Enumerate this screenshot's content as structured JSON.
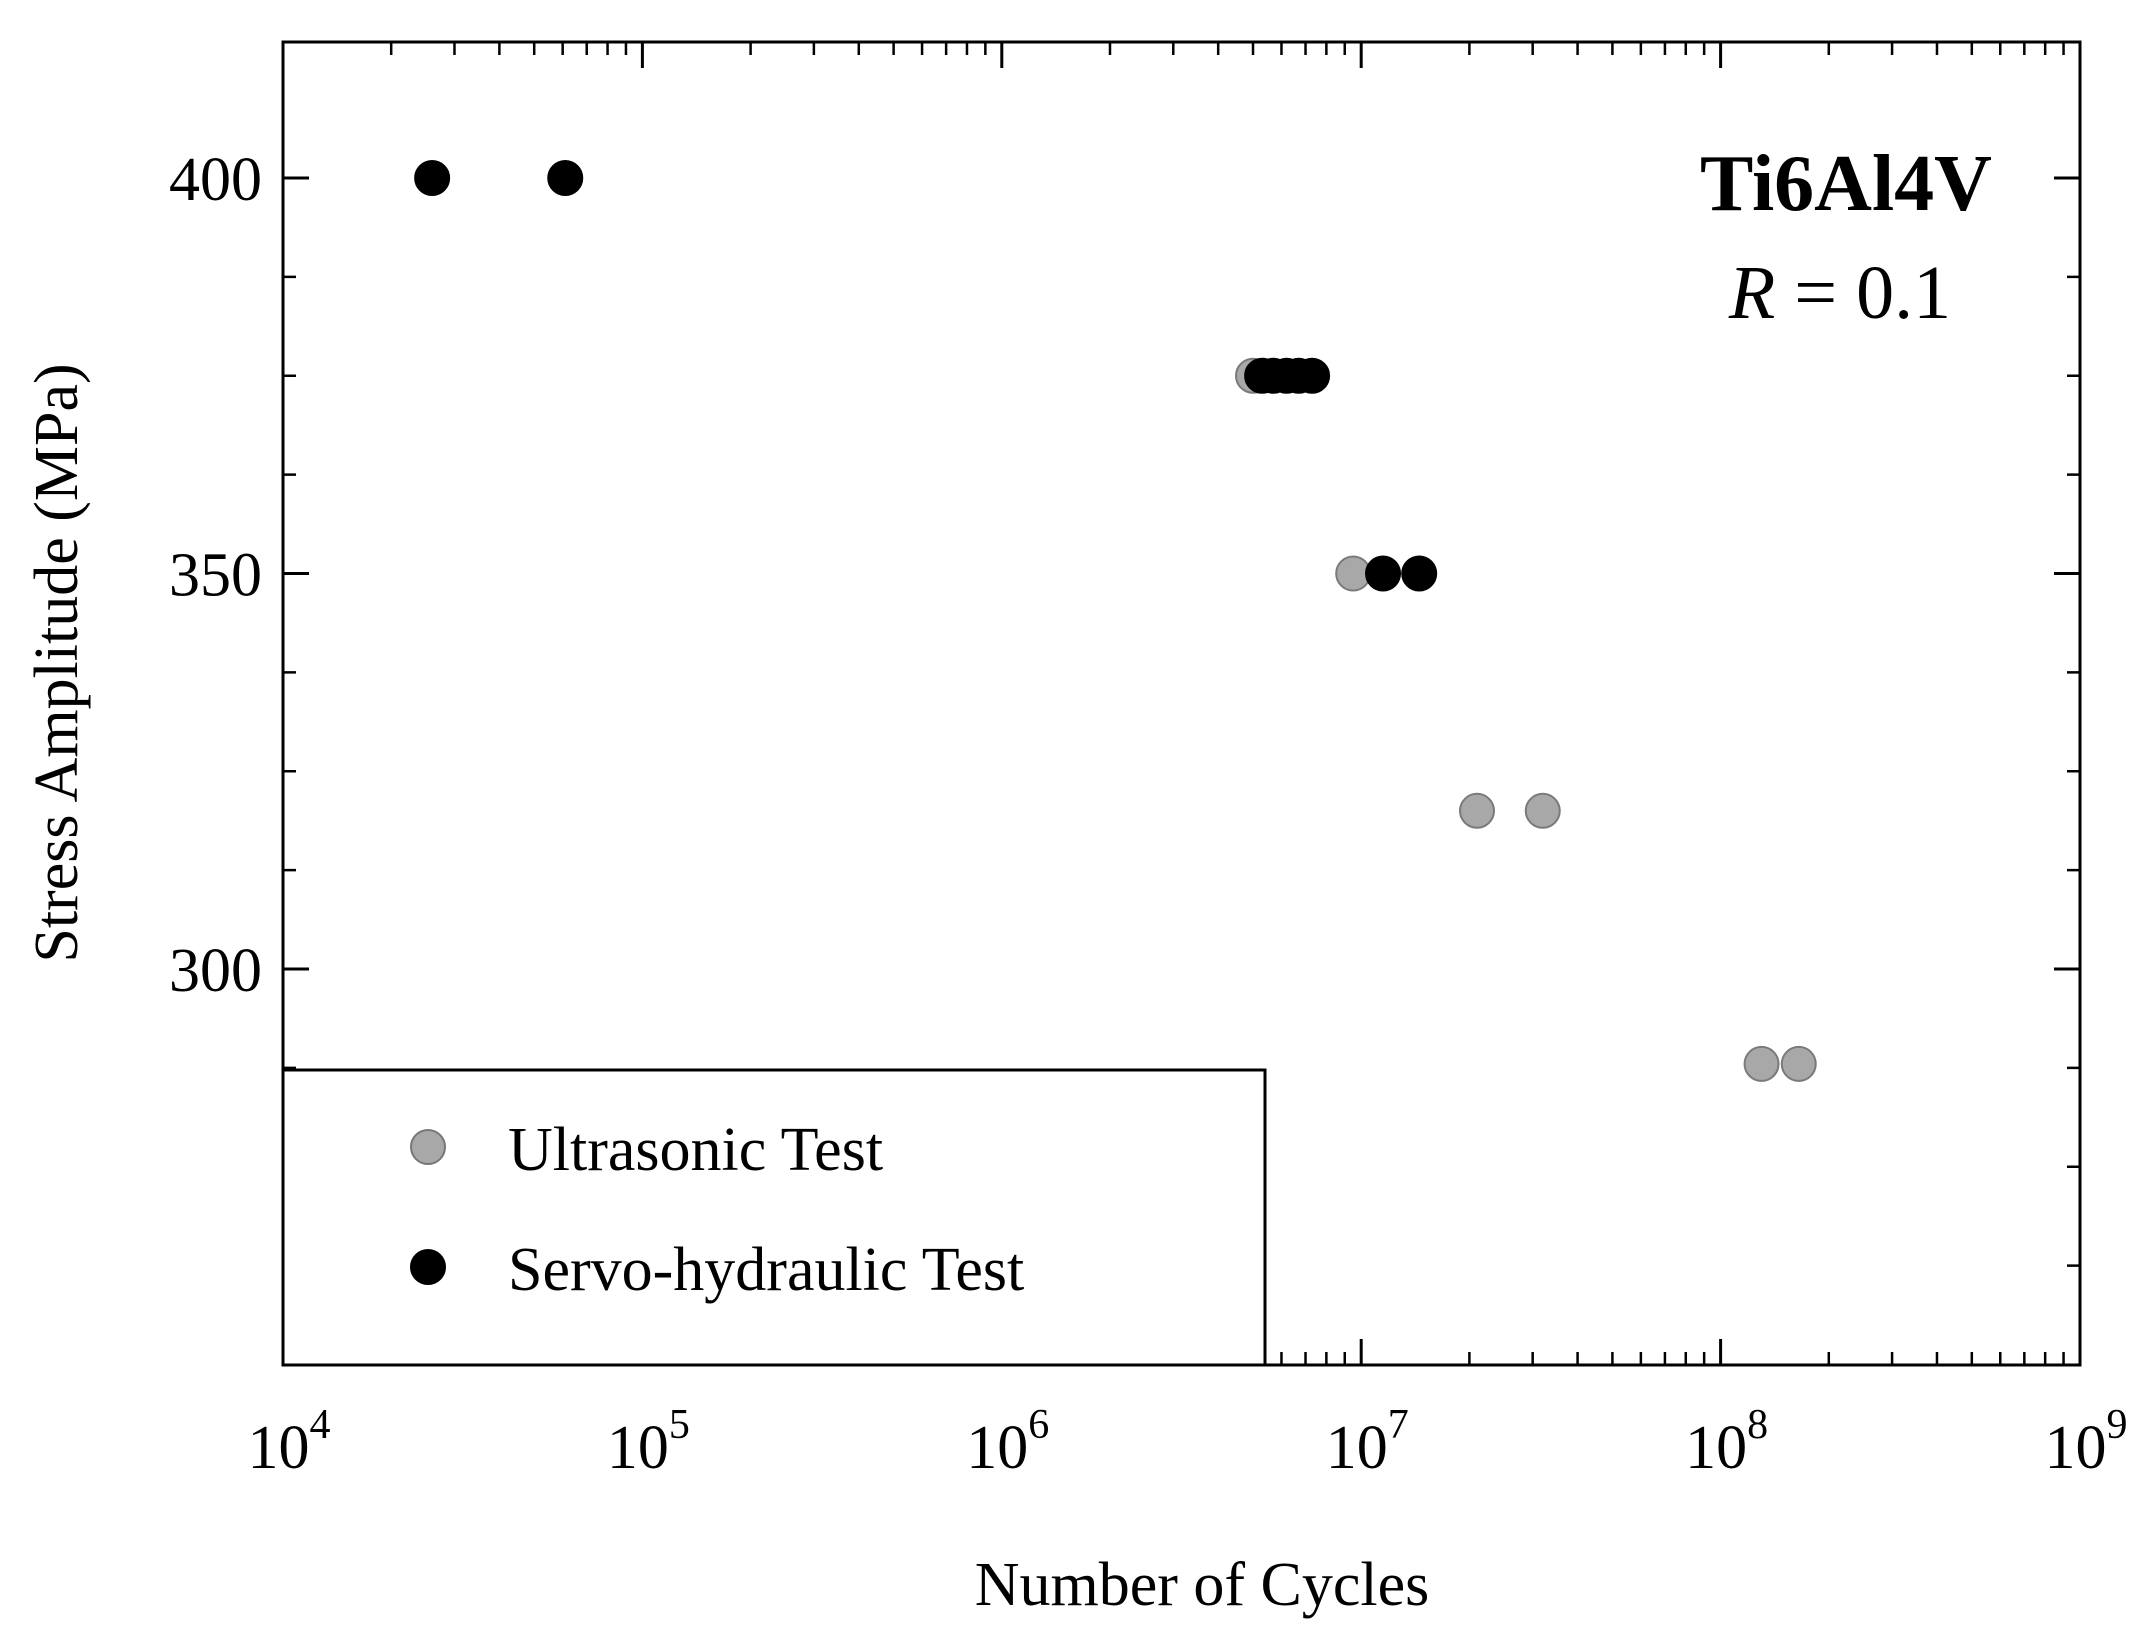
{
  "chart_data": {
    "type": "scatter",
    "title": "Ti6Al4V",
    "annotation": {
      "variable": "R",
      "relation": " = 0.1"
    },
    "xlabel": "Number of Cycles",
    "ylabel": "Stress Amplitude (MPa)",
    "x_scale": "log",
    "xlim": [
      10000,
      1000000000
    ],
    "ylim": [
      250,
      415
    ],
    "x_ticks": [
      {
        "value": 10000,
        "base": "10",
        "exp": "4"
      },
      {
        "value": 100000,
        "base": "10",
        "exp": "5"
      },
      {
        "value": 1000000,
        "base": "10",
        "exp": "6"
      },
      {
        "value": 10000000,
        "base": "10",
        "exp": "7"
      },
      {
        "value": 100000000,
        "base": "10",
        "exp": "8"
      },
      {
        "value": 1000000000,
        "base": "10",
        "exp": "9"
      }
    ],
    "y_major_ticks": [
      300,
      350,
      400
    ],
    "y_tick_labels": [
      "300",
      "350",
      "400"
    ],
    "y_minor_ticks": [
      262.5,
      275,
      287.5,
      312.5,
      325,
      337.5,
      362.5,
      375,
      387.5
    ],
    "grid": false,
    "legend_position": "bottom-left",
    "series": [
      {
        "name": "Ultrasonic Test",
        "color": "#a8a8a8",
        "x": [
          5000000,
          9500000,
          21000000,
          32000000,
          130000000,
          165000000
        ],
        "y": [
          375,
          350,
          320,
          320,
          288,
          288
        ]
      },
      {
        "name": "Servo-hydraulic Test",
        "color": "#000000",
        "x": [
          26000,
          61000,
          5300000,
          5700000,
          6200000,
          6700000,
          7300000,
          11500000,
          14500000
        ],
        "y": [
          400,
          400,
          375,
          375,
          375,
          375,
          375,
          350,
          350
        ]
      }
    ]
  }
}
